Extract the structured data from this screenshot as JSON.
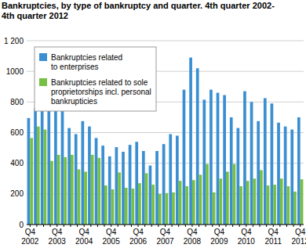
{
  "chart_data": {
    "type": "bar",
    "title": "Bankruptcies, by type of bankruptcy and quarter. 4th quarter 2002-\n4th quarter 2012",
    "categories": [
      "Q4\n2002",
      null,
      null,
      null,
      "Q4\n2003",
      null,
      null,
      null,
      "Q4\n2004",
      null,
      null,
      null,
      "Q4\n2005",
      null,
      null,
      null,
      "Q4\n2006",
      null,
      null,
      null,
      "Q4\n2007",
      null,
      null,
      null,
      "Q4\n2008",
      null,
      null,
      null,
      "Q4\n2009",
      null,
      null,
      null,
      "Q4\n2010",
      null,
      null,
      null,
      "Q4\n2011",
      null,
      null,
      null,
      "Q4\n2012"
    ],
    "series": [
      {
        "name": "Bankruptcies related\nto enterprises",
        "color": "#3a8fd2",
        "values": [
          695,
          760,
          775,
          765,
          770,
          770,
          630,
          590,
          675,
          640,
          565,
          515,
          445,
          505,
          475,
          520,
          540,
          480,
          385,
          480,
          525,
          590,
          580,
          880,
          1090,
          1020,
          815,
          880,
          860,
          845,
          700,
          630,
          870,
          800,
          675,
          825,
          790,
          665,
          640,
          620,
          700
        ]
      },
      {
        "name": "Bankruptcies related to sole\nproprietorships incl. personal\nbankrupticies",
        "color": "#78c043",
        "values": [
          565,
          640,
          620,
          415,
          455,
          440,
          455,
          360,
          345,
          455,
          435,
          255,
          230,
          340,
          240,
          235,
          270,
          335,
          260,
          200,
          205,
          210,
          285,
          250,
          290,
          325,
          395,
          210,
          300,
          345,
          395,
          250,
          285,
          300,
          355,
          255,
          260,
          300,
          250,
          215,
          295
        ]
      }
    ],
    "ylim": [
      0,
      1200
    ],
    "yticks": [
      0,
      200,
      400,
      600,
      800,
      1000,
      {
        "value": 1200,
        "label": "1 200"
      }
    ],
    "grid": true,
    "legend": "top-left"
  }
}
